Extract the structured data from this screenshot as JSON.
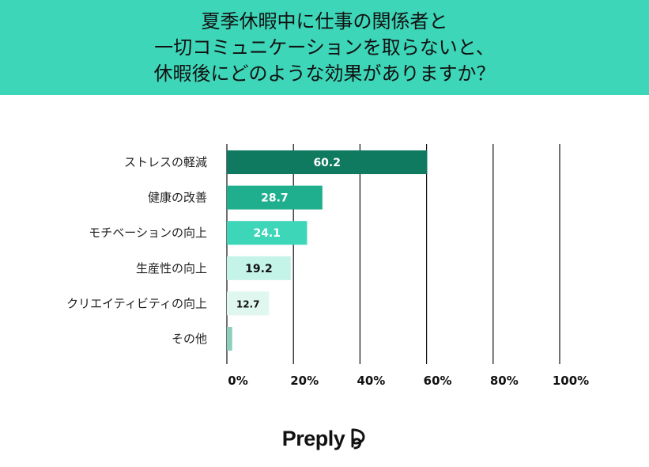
{
  "header": {
    "title_lines": [
      "夏季休暇中に仕事の関係者と",
      "一切コミュニケーションを取らないと、",
      "休暇後にどのような効果がありますか？"
    ]
  },
  "chart_data": {
    "type": "bar",
    "orientation": "horizontal",
    "categories": [
      "ストレスの軽減",
      "健康の改善",
      "モチベーションの向上",
      "生産性の向上",
      "クリエイティビティの向上",
      "その他"
    ],
    "values": [
      60.2,
      28.7,
      24.1,
      19.2,
      12.7,
      1.6
    ],
    "data_labels": [
      "60.2",
      "28.7",
      "24.1",
      "19.2",
      "12.7",
      ""
    ],
    "bar_colors": [
      "#0f7a5f",
      "#1fae8e",
      "#3dd6b8",
      "#c4f3e8",
      "#e0f7f0",
      "#8ccfbd"
    ],
    "label_colors": [
      "#ffffff",
      "#ffffff",
      "#ffffff",
      "#111111",
      "#111111",
      "#111111"
    ],
    "xlim": [
      0,
      100
    ],
    "xticks": [
      0,
      20,
      40,
      60,
      80,
      100
    ],
    "xtick_labels": [
      "0%",
      "20%",
      "40%",
      "60%",
      "80%",
      "100%"
    ],
    "grid": "vertical"
  },
  "brand": {
    "name": "Preply",
    "logo_icon": "preply-heart-icon",
    "color": "#111111"
  }
}
